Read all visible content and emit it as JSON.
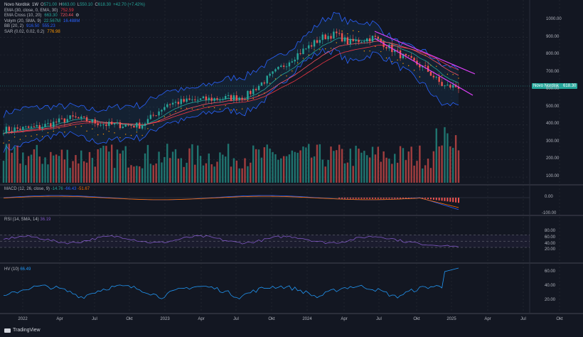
{
  "header": {
    "symbol": "Novo Nordisk",
    "interval": "1W",
    "o_label": "O",
    "o": "571.00",
    "h_label": "H",
    "h": "663.00",
    "l_label": "L",
    "l": "550.10",
    "c_label": "C",
    "c": "618.30",
    "change": "+42.70 (+7.42%)"
  },
  "indicators": [
    {
      "name": "EMA (30, close, 0, EMA, 30)",
      "values": [
        "752.59"
      ],
      "colors": [
        "#f23645"
      ]
    },
    {
      "name": "EMA Cross (10, 20)",
      "values": [
        "663.30",
        "720.44"
      ],
      "colors": [
        "#26a69a",
        "#f7525f"
      ]
    },
    {
      "name": "Volym (20, SMA, 9)",
      "values": [
        "22.567M",
        "16.488M"
      ],
      "colors": [
        "#26a69a",
        "#2962ff"
      ]
    },
    {
      "name": "BB (20, 2)",
      "values": [
        "916.50",
        "555.23"
      ],
      "colors": [
        "#2962ff",
        "#2962ff"
      ]
    },
    {
      "name": "SAR (0.02, 0.02, 0.2)",
      "values": [
        "776.98"
      ],
      "colors": [
        "#ff9800"
      ]
    }
  ],
  "price_axis": [
    "1000.00",
    "900.00",
    "800.00",
    "700.00",
    "600.00",
    "500.00",
    "400.00",
    "300.00",
    "200.00",
    "100.00"
  ],
  "last_price": {
    "label": "Novo Nordisk",
    "value": "618.30"
  },
  "macd": {
    "title": "MACD (12, 26, close, 9)",
    "values": [
      "-14.76",
      "-66.43",
      "-51.67"
    ],
    "colors": [
      "#26a69a",
      "#2962ff",
      "#ff6d00"
    ],
    "axis": [
      "0.00",
      "-100.00"
    ]
  },
  "rsi": {
    "title": "RSI (14, SMA, 14)",
    "value": "36.19",
    "value_color": "#7e57c2",
    "axis": [
      "80.00",
      "60.00",
      "40.00",
      "20.00"
    ]
  },
  "hv": {
    "title": "HV (10)",
    "value": "66.49",
    "value_color": "#2196f3",
    "axis": [
      "60.00",
      "40.00",
      "20.00"
    ]
  },
  "time_axis": [
    "2022",
    "Apr",
    "Jul",
    "Okt",
    "2023",
    "Apr",
    "Jul",
    "Okt",
    "2024",
    "Apr",
    "Jul",
    "Okt",
    "2025",
    "Apr",
    "Jul",
    "Okt"
  ],
  "brand": "TradingView",
  "colors": {
    "up": "#26a69a",
    "down": "#ef5350",
    "background": "#131722",
    "grid": "#2a2e39"
  }
}
